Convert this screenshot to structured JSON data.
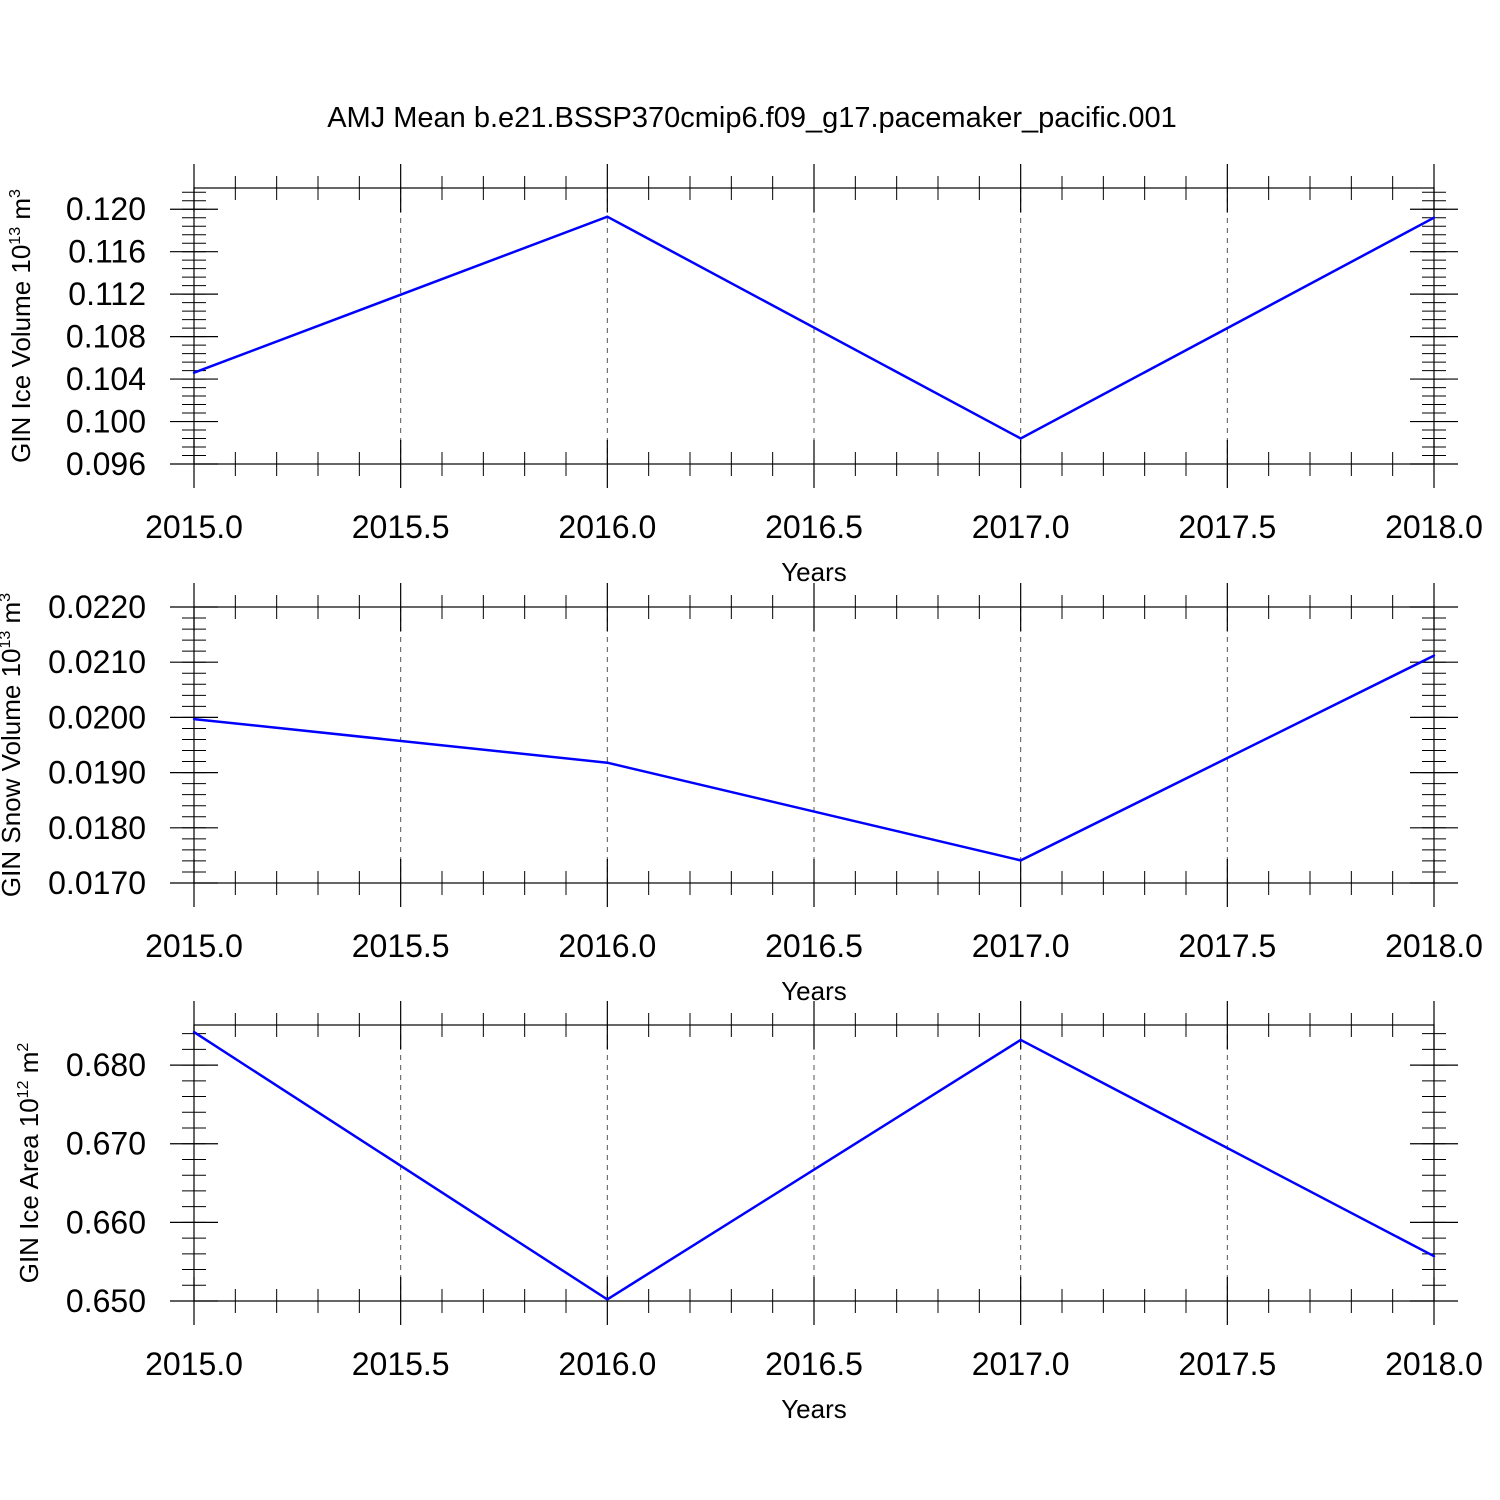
{
  "title": "AMJ Mean b.e21.BSSP370cmip6.f09_g17.pacemaker_pacific.001",
  "colors": {
    "series": "#0000ff",
    "axis": "#000000",
    "grid": "#555555"
  },
  "chart_data": [
    {
      "type": "line",
      "xlabel": "Years",
      "ylabel": "GIN Ice Volume 10",
      "ylabel_exponent": "13",
      "ylabel_unit": " m",
      "ylabel_unit_exponent": "3",
      "xlim": [
        2015.0,
        2018.0
      ],
      "ylim": [
        0.096,
        0.122
      ],
      "x_ticks": [
        "2015.0",
        "2015.5",
        "2016.0",
        "2016.5",
        "2017.0",
        "2017.5",
        "2018.0"
      ],
      "y_ticks": [
        "0.096",
        "0.100",
        "0.104",
        "0.108",
        "0.112",
        "0.116",
        "0.120"
      ],
      "grid": "vertical dashed",
      "x": [
        2015,
        2016,
        2017,
        2018
      ],
      "y": [
        0.1046,
        0.1193,
        0.0984,
        0.1192
      ]
    },
    {
      "type": "line",
      "xlabel": "Years",
      "ylabel": "GIN Snow Volume 10",
      "ylabel_exponent": "13",
      "ylabel_unit": " m",
      "ylabel_unit_exponent": "3",
      "xlim": [
        2015.0,
        2018.0
      ],
      "ylim": [
        0.017,
        0.022
      ],
      "x_ticks": [
        "2015.0",
        "2015.5",
        "2016.0",
        "2016.5",
        "2017.0",
        "2017.5",
        "2018.0"
      ],
      "y_ticks": [
        "0.0170",
        "0.0180",
        "0.0190",
        "0.0200",
        "0.0210",
        "0.0220"
      ],
      "grid": "vertical dashed",
      "x": [
        2015,
        2016,
        2017,
        2018
      ],
      "y": [
        0.01997,
        0.01918,
        0.01741,
        0.02112
      ]
    },
    {
      "type": "line",
      "xlabel": "Years",
      "ylabel": "GIN Ice Area 10",
      "ylabel_exponent": "12",
      "ylabel_unit": " m",
      "ylabel_unit_exponent": "2",
      "xlim": [
        2015.0,
        2018.0
      ],
      "ylim": [
        0.65,
        0.6851
      ],
      "x_ticks": [
        "2015.0",
        "2015.5",
        "2016.0",
        "2016.5",
        "2017.0",
        "2017.5",
        "2018.0"
      ],
      "y_ticks": [
        "0.650",
        "0.660",
        "0.670",
        "0.680"
      ],
      "grid": "vertical dashed",
      "x": [
        2015,
        2016,
        2017,
        2018
      ],
      "y": [
        0.6842,
        0.6502,
        0.6832,
        0.6557
      ]
    }
  ]
}
